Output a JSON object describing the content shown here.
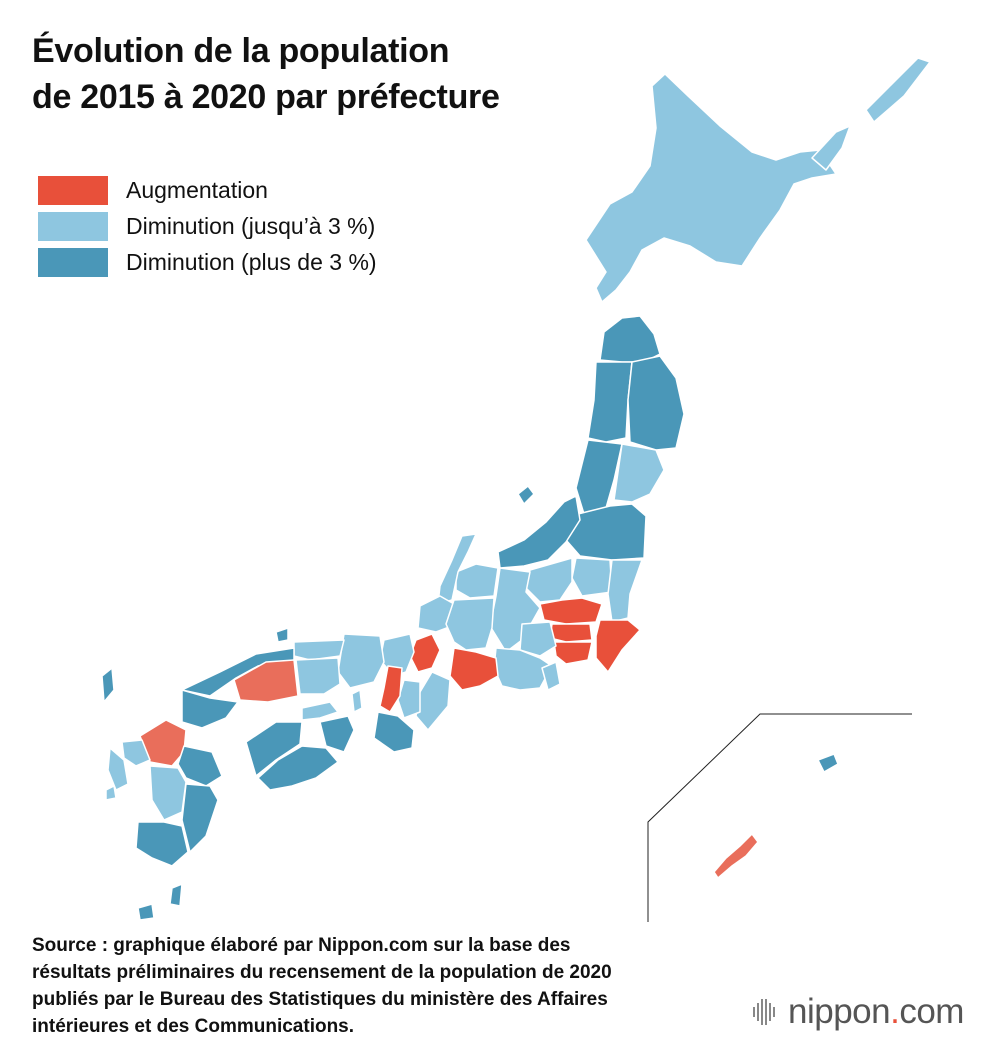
{
  "title": {
    "line1": "Évolution de la population",
    "line2": "de 2015 à 2020 par préfecture"
  },
  "legend": [
    {
      "label": "Augmentation",
      "color": "#e8503a"
    },
    {
      "label": "Diminution (jusqu’à 3 %)",
      "color": "#8ec6e0"
    },
    {
      "label": "Diminution (plus de 3 %)",
      "color": "#4a97b8"
    }
  ],
  "map": {
    "categories": {
      "increase": "#e8503a",
      "increase_light": "#e96e5b",
      "decrease_small": "#8ec6e0",
      "decrease_large": "#4a97b8"
    },
    "border_color": "#ffffff",
    "inset_line_color": "#222222"
  },
  "source": {
    "line1": "Source : graphique élaboré par Nippon.com sur la base des",
    "line2": "résultats préliminaires du recensement de la population de 2020",
    "line3": "publiés par le Bureau des Statistiques du ministère des Affaires",
    "line4": "intérieures et des Communications."
  },
  "brand": {
    "name": "nippon",
    "dot": ".",
    "suffix": "com",
    "icon": "nippon-logo-icon"
  }
}
